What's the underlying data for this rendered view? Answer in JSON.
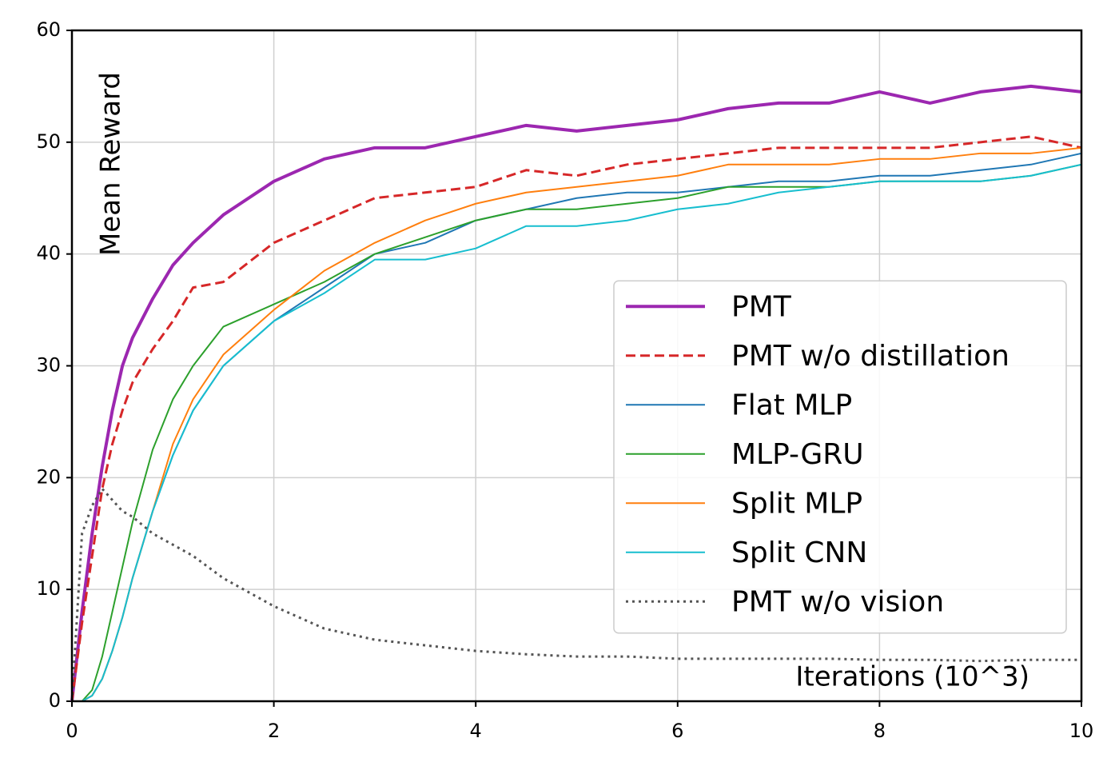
{
  "chart_data": {
    "type": "line",
    "x_label": "Iterations (10^3)",
    "y_label": "Mean Reward",
    "x": [
      0,
      0.1,
      0.2,
      0.3,
      0.4,
      0.5,
      0.6,
      0.8,
      1,
      1.2,
      1.5,
      2,
      2.5,
      3,
      3.5,
      4,
      4.5,
      5,
      5.5,
      6,
      6.5,
      7,
      7.5,
      8,
      8.5,
      9,
      9.5,
      10
    ],
    "series": [
      {
        "name": "PMT",
        "color": "#9c27b0",
        "linestyle": "solid",
        "linewidth": 4,
        "values": [
          0,
          8,
          15,
          21,
          26,
          30,
          32.5,
          36,
          39,
          41,
          43.5,
          46.5,
          48.5,
          49.5,
          49.5,
          50.5,
          51.5,
          51,
          51.5,
          52,
          53,
          53.5,
          53.5,
          54.5,
          53.5,
          54.5,
          55,
          54.5
        ]
      },
      {
        "name": "PMT w/o distillation",
        "color": "#d62728",
        "linestyle": "dashed",
        "linewidth": 3,
        "values": [
          0,
          7,
          13,
          19,
          23,
          26,
          28.5,
          31.5,
          34,
          37,
          37.5,
          41,
          43,
          45,
          45.5,
          46,
          47.5,
          47,
          48,
          48.5,
          49,
          49.5,
          49.5,
          49.5,
          49.5,
          50,
          50.5,
          49.5
        ]
      },
      {
        "name": "Flat MLP",
        "color": "#1f77b4",
        "linestyle": "solid",
        "linewidth": 2,
        "values": [
          0,
          0,
          0.5,
          2,
          4.5,
          7.5,
          11,
          17,
          22,
          26,
          30,
          34,
          37,
          40,
          41,
          43,
          44,
          45,
          45.5,
          45.5,
          46,
          46.5,
          46.5,
          47,
          47,
          47.5,
          48,
          49
        ]
      },
      {
        "name": "MLP-GRU",
        "color": "#2ca02c",
        "linestyle": "solid",
        "linewidth": 2,
        "values": [
          0,
          0,
          1,
          4,
          8,
          12,
          16,
          22.5,
          27,
          30,
          33.5,
          35.5,
          37.5,
          40,
          41.5,
          43,
          44,
          44,
          44.5,
          45,
          46,
          46,
          46,
          46.5,
          46.5,
          46.5,
          47,
          48
        ]
      },
      {
        "name": "Split MLP",
        "color": "#ff7f0e",
        "linestyle": "solid",
        "linewidth": 2,
        "values": [
          0,
          0,
          0.5,
          2,
          4.5,
          7.5,
          11,
          17,
          23,
          27,
          31,
          35,
          38.5,
          41,
          43,
          44.5,
          45.5,
          46,
          46.5,
          47,
          48,
          48,
          48,
          48.5,
          48.5,
          49,
          49,
          49.5
        ]
      },
      {
        "name": "Split CNN",
        "color": "#17becf",
        "linestyle": "solid",
        "linewidth": 2,
        "values": [
          0,
          0,
          0.5,
          2,
          4.5,
          7.5,
          11,
          17,
          22,
          26,
          30,
          34,
          36.5,
          39.5,
          39.5,
          40.5,
          42.5,
          42.5,
          43,
          44,
          44.5,
          45.5,
          46,
          46.5,
          46.5,
          46.5,
          47,
          48
        ]
      },
      {
        "name": "PMT w/o vision",
        "color": "#555555",
        "linestyle": "dotted",
        "linewidth": 3,
        "values": [
          0,
          15,
          17.5,
          19,
          18,
          17,
          16.5,
          15,
          14,
          13,
          11,
          8.5,
          6.5,
          5.5,
          5,
          4.5,
          4.2,
          4,
          4,
          3.8,
          3.8,
          3.8,
          3.8,
          3.7,
          3.7,
          3.6,
          3.7,
          3.7
        ]
      }
    ],
    "xlim": [
      0,
      10
    ],
    "ylim": [
      0,
      60
    ],
    "xticks": [
      0,
      2,
      4,
      6,
      8,
      10
    ],
    "yticks": [
      0,
      10,
      20,
      30,
      40,
      50,
      60
    ],
    "grid": true,
    "legend": "center right"
  }
}
